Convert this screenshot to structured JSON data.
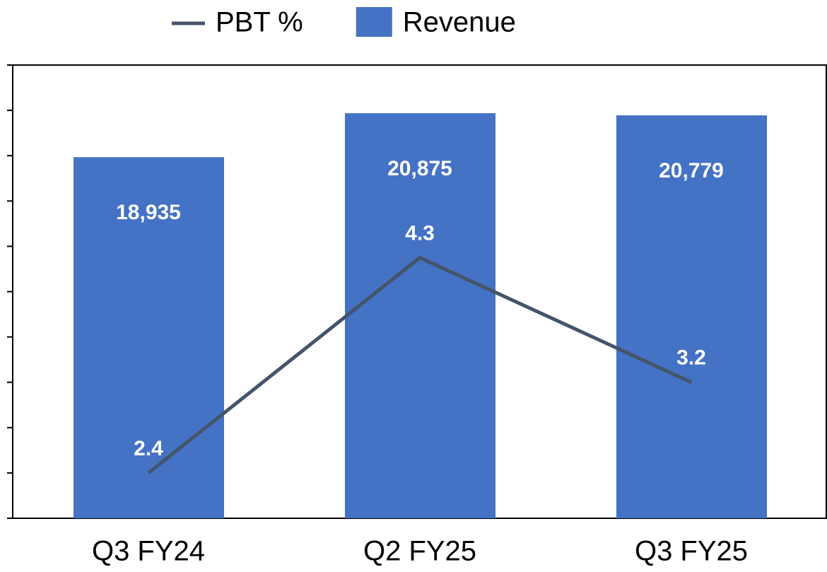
{
  "chart_data": {
    "type": "combo",
    "categories": [
      "Q3 FY24",
      "Q2 FY25",
      "Q3 FY25"
    ],
    "series": [
      {
        "name": "PBT %",
        "type": "line",
        "color": "#44546a",
        "axis": "y2",
        "values": [
          2.4,
          4.3,
          3.2
        ]
      },
      {
        "name": "Revenue",
        "type": "bar",
        "color": "#4472c4",
        "values": [
          18935,
          20875,
          20779
        ],
        "value_labels": [
          "18,935",
          "20,875",
          "20,779"
        ]
      }
    ],
    "ylim": [
      3000,
      23000
    ],
    "yticks": [
      3000,
      5000,
      7000,
      9000,
      11000,
      13000,
      15000,
      17000,
      19000,
      21000,
      23000
    ],
    "y2lim": [
      2,
      6
    ],
    "legend": "top"
  }
}
